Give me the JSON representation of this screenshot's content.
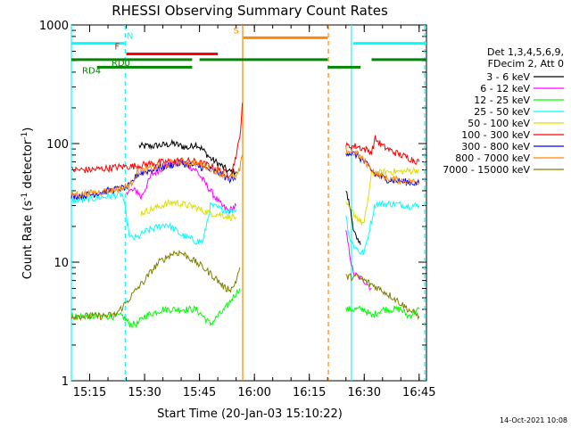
{
  "chart_data": {
    "type": "line",
    "title": "RHESSI Observing Summary Count Rates",
    "xlabel": "Start Time (20-Jan-03 15:10:22)",
    "ylabel_main": "Count Rate (s",
    "ylabel_sup1": "-1",
    "ylabel_mid": " detector",
    "ylabel_sup2": "-1",
    "ylabel_end": ")",
    "yscale": "log",
    "ylim": [
      1,
      1000
    ],
    "xlim_minutes": [
      0,
      97
    ],
    "x_ticks": [
      {
        "label": "15:15",
        "minute": 5
      },
      {
        "label": "15:30",
        "minute": 20
      },
      {
        "label": "15:45",
        "minute": 35
      },
      {
        "label": "16:00",
        "minute": 50
      },
      {
        "label": "16:15",
        "minute": 65
      },
      {
        "label": "16:30",
        "minute": 80
      },
      {
        "label": "16:45",
        "minute": 95
      }
    ],
    "y_ticks": [
      {
        "label": "1",
        "value": 1
      },
      {
        "label": "10",
        "value": 10
      },
      {
        "label": "100",
        "value": 100
      },
      {
        "label": "1000",
        "value": 1000
      }
    ],
    "legend_header": [
      "Det 1,3,4,5,6,9,",
      "FDecim 2, Att 0"
    ],
    "legend_position": "right",
    "series": [
      {
        "name": "3 - 6 keV",
        "color": "#000000",
        "segments": [
          [
            [
              18.5,
              95
            ],
            [
              22,
              95
            ],
            [
              26,
              98
            ],
            [
              28,
              100
            ],
            [
              30,
              95
            ],
            [
              32,
              92
            ],
            [
              34,
              100
            ],
            [
              36,
              88
            ],
            [
              38,
              75
            ],
            [
              41,
              65
            ],
            [
              43,
              58
            ],
            [
              45,
              58
            ]
          ],
          [
            [
              75,
              40
            ],
            [
              76,
              30
            ],
            [
              77,
              20
            ],
            [
              78,
              15
            ],
            [
              79,
              14
            ]
          ]
        ]
      },
      {
        "name": "6 - 12 keV",
        "color": "#ff00ff",
        "segments": [
          [
            [
              15,
              40
            ],
            [
              18,
              40
            ],
            [
              19,
              35
            ],
            [
              22,
              55
            ],
            [
              26,
              65
            ],
            [
              30,
              70
            ],
            [
              34,
              60
            ],
            [
              38,
              40
            ],
            [
              41,
              30
            ],
            [
              43,
              27
            ],
            [
              45,
              30
            ]
          ],
          [
            [
              75,
              18
            ],
            [
              76,
              12
            ],
            [
              77,
              8
            ],
            [
              80,
              7
            ],
            [
              82,
              6
            ]
          ]
        ]
      },
      {
        "name": "12 - 25 keV",
        "color": "#00ff00",
        "segments": [
          [
            [
              0,
              3.5
            ],
            [
              5,
              3.5
            ],
            [
              10,
              3.5
            ],
            [
              14,
              3.5
            ],
            [
              16,
              3.0
            ],
            [
              18,
              3.0
            ],
            [
              20,
              3.5
            ],
            [
              25,
              4.0
            ],
            [
              30,
              4.0
            ],
            [
              34,
              4.0
            ],
            [
              36,
              3.5
            ],
            [
              38,
              3.0
            ],
            [
              40,
              3.5
            ],
            [
              42,
              4.0
            ],
            [
              44,
              5.0
            ],
            [
              46,
              6.0
            ]
          ],
          [
            [
              75,
              4.0
            ],
            [
              78,
              4.0
            ],
            [
              80,
              4.0
            ],
            [
              82,
              3.5
            ],
            [
              85,
              4.0
            ],
            [
              88,
              4.0
            ],
            [
              90,
              4.0
            ],
            [
              92,
              3.5
            ],
            [
              95,
              4.0
            ]
          ]
        ]
      },
      {
        "name": "25 - 50 keV",
        "color": "#00ffff",
        "segments": [
          [
            [
              0,
              33
            ],
            [
              5,
              34
            ],
            [
              10,
              36
            ],
            [
              14,
              37
            ],
            [
              16,
              16
            ],
            [
              18,
              16
            ],
            [
              20,
              18
            ],
            [
              24,
              20
            ],
            [
              26,
              21
            ],
            [
              28,
              19
            ],
            [
              30,
              17
            ],
            [
              34,
              15
            ],
            [
              36,
              15
            ],
            [
              38,
              30
            ],
            [
              41,
              28
            ],
            [
              43,
              27
            ],
            [
              45,
              28
            ]
          ],
          [
            [
              75,
              25
            ],
            [
              76,
              16
            ],
            [
              77,
              14
            ],
            [
              78,
              13
            ],
            [
              79,
              12
            ],
            [
              80,
              12
            ],
            [
              83,
              31
            ],
            [
              88,
              31
            ],
            [
              92,
              30
            ],
            [
              95,
              30
            ]
          ]
        ]
      },
      {
        "name": "50 - 100 keV",
        "color": "#dddd00",
        "segments": [
          [
            [
              19,
              26
            ],
            [
              22,
              28
            ],
            [
              26,
              31
            ],
            [
              28,
              32
            ],
            [
              30,
              31
            ],
            [
              34,
              29
            ],
            [
              36,
              27
            ],
            [
              38,
              26
            ],
            [
              41,
              25
            ],
            [
              43,
              24
            ],
            [
              45,
              24
            ]
          ],
          [
            [
              75,
              30
            ],
            [
              77,
              26
            ],
            [
              79,
              22
            ],
            [
              80,
              21
            ],
            [
              82,
              55
            ],
            [
              86,
              58
            ],
            [
              90,
              58
            ],
            [
              95,
              60
            ]
          ]
        ]
      },
      {
        "name": "100 - 300 keV",
        "color": "#ff0000",
        "segments": [
          [
            [
              0,
              60
            ],
            [
              5,
              60
            ],
            [
              10,
              62
            ],
            [
              14,
              64
            ],
            [
              16,
              64
            ],
            [
              18,
              65
            ],
            [
              22,
              68
            ],
            [
              26,
              70
            ],
            [
              30,
              72
            ],
            [
              34,
              70
            ],
            [
              38,
              65
            ],
            [
              41,
              58
            ],
            [
              43,
              55
            ],
            [
              44,
              60
            ],
            [
              45,
              80
            ],
            [
              46,
              110
            ],
            [
              46.7,
              220
            ]
          ],
          [
            [
              75,
              95
            ],
            [
              78,
              95
            ],
            [
              80,
              90
            ],
            [
              82,
              85
            ],
            [
              83,
              110
            ],
            [
              85,
              95
            ],
            [
              88,
              85
            ],
            [
              90,
              80
            ],
            [
              95,
              70
            ]
          ]
        ]
      },
      {
        "name": "300 - 800 keV",
        "color": "#0000ff",
        "segments": [
          [
            [
              0,
              36
            ],
            [
              5,
              37
            ],
            [
              10,
              40
            ],
            [
              14,
              42
            ],
            [
              16,
              44
            ],
            [
              18,
              55
            ],
            [
              22,
              60
            ],
            [
              26,
              65
            ],
            [
              30,
              68
            ],
            [
              34,
              65
            ],
            [
              38,
              60
            ],
            [
              41,
              55
            ],
            [
              43,
              50
            ],
            [
              45,
              50
            ]
          ],
          [
            [
              75,
              85
            ],
            [
              78,
              80
            ],
            [
              80,
              70
            ],
            [
              83,
              55
            ],
            [
              86,
              50
            ],
            [
              90,
              48
            ],
            [
              95,
              46
            ]
          ]
        ]
      },
      {
        "name": "800 - 7000 keV",
        "color": "#ff8800",
        "segments": [
          [
            [
              0,
              37
            ],
            [
              5,
              38
            ],
            [
              10,
              40
            ],
            [
              14,
              42
            ],
            [
              16,
              44
            ],
            [
              18,
              57
            ],
            [
              22,
              62
            ],
            [
              26,
              67
            ],
            [
              30,
              70
            ],
            [
              34,
              68
            ],
            [
              38,
              62
            ],
            [
              41,
              56
            ],
            [
              43,
              52
            ],
            [
              45,
              52
            ],
            [
              46,
              60
            ],
            [
              46.7,
              80
            ]
          ],
          [
            [
              75,
              88
            ],
            [
              78,
              82
            ],
            [
              80,
              72
            ],
            [
              83,
              56
            ],
            [
              86,
              51
            ],
            [
              90,
              49
            ],
            [
              95,
              47
            ]
          ]
        ]
      },
      {
        "name": "7000 - 15000 keV",
        "color": "#808000",
        "segments": [
          [
            [
              0,
              3.5
            ],
            [
              4,
              3.5
            ],
            [
              8,
              3.5
            ],
            [
              12,
              3.6
            ],
            [
              14,
              4.2
            ],
            [
              16,
              5.0
            ],
            [
              18,
              6.0
            ],
            [
              20,
              7.0
            ],
            [
              22,
              8.5
            ],
            [
              24,
              10
            ],
            [
              26,
              11
            ],
            [
              28,
              12
            ],
            [
              30,
              12
            ],
            [
              32,
              11
            ],
            [
              34,
              10
            ],
            [
              36,
              9.0
            ],
            [
              38,
              8.0
            ],
            [
              40,
              7.0
            ],
            [
              42,
              6.0
            ],
            [
              44,
              6.0
            ],
            [
              45,
              7.0
            ],
            [
              46,
              9.0
            ]
          ],
          [
            [
              75,
              7.5
            ],
            [
              78,
              7.5
            ],
            [
              80,
              7.0
            ],
            [
              82,
              6.5
            ],
            [
              84,
              6.0
            ],
            [
              86,
              5.5
            ],
            [
              88,
              5.0
            ],
            [
              90,
              4.5
            ],
            [
              92,
              4.0
            ],
            [
              95,
              3.5
            ]
          ]
        ]
      }
    ],
    "status_bars": [
      {
        "label": "N",
        "color": "#00ffff",
        "y_value": 700,
        "segments": [
          [
            0,
            14.5
          ],
          [
            77,
            97
          ]
        ],
        "label_minute": 16
      },
      {
        "label": "F",
        "color": "#ff0000",
        "y_value": 570,
        "segments": [
          [
            15,
            40
          ]
        ],
        "label_minute": 12.5
      },
      {
        "label": "S",
        "color": "#ff8800",
        "y_value": 780,
        "segments": [
          [
            47,
            70
          ]
        ],
        "label_minute": 45
      },
      {
        "label": "RD0",
        "color": "#008800",
        "y_value": 510,
        "segments": [
          [
            0,
            33
          ],
          [
            35,
            70
          ],
          [
            82,
            97
          ]
        ],
        "label_minute": 13.5
      },
      {
        "label": "RD4",
        "color": "#008800",
        "y_value": 440,
        "segments": [
          [
            7,
            33
          ],
          [
            70,
            79
          ]
        ],
        "label_minute": 5.5
      }
    ],
    "vertical_lines": [
      {
        "minute": 0,
        "color": "#00ffff",
        "style": "solid"
      },
      {
        "minute": 14.7,
        "color": "#00ffff",
        "style": "dashed"
      },
      {
        "minute": 46.8,
        "color": "#ff8800",
        "style": "solid"
      },
      {
        "minute": 70.2,
        "color": "#ff8800",
        "style": "dashed"
      },
      {
        "minute": 76.5,
        "color": "#00ffff",
        "style": "solid"
      },
      {
        "minute": 96.5,
        "color": "#00ffff",
        "style": "dashed"
      }
    ]
  },
  "footer": {
    "timestamp": "14-Oct-2021 10:08"
  }
}
